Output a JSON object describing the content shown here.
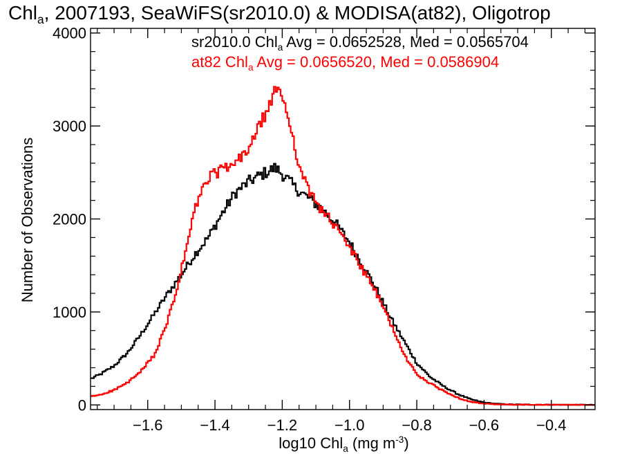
{
  "title": {
    "prefix": "Chl",
    "sub": "a",
    "rest": ", 2007193, SeaWiFS(sr2010.0) & MODISA(at82), Oligotrop"
  },
  "annotations": [
    {
      "pre": "sr2010.0 Chl",
      "sub": "a",
      "post": " Avg = 0.0652528, Med = 0.0565704",
      "color": "#000000"
    },
    {
      "pre": "at82 Chl",
      "sub": "a",
      "post": " Avg = 0.0656520, Med = 0.0586904",
      "color": "#ff0000"
    }
  ],
  "axes": {
    "xlabel": {
      "pre": "log10 Chl",
      "sub": "a",
      "post": " (mg m",
      "sup": "-3",
      "end": ")"
    },
    "ylabel": "Number of Observations"
  },
  "chart_data": {
    "type": "line",
    "style": "step",
    "xlim": [
      -1.77,
      -0.27
    ],
    "ylim": [
      -50,
      4050
    ],
    "xticks": [
      -1.6,
      -1.4,
      -1.2,
      -1.0,
      -0.8,
      -0.6,
      -0.4
    ],
    "xtick_labels": [
      "−1.6",
      "−1.4",
      "−1.2",
      "−1.0",
      "−0.8",
      "−0.6",
      "−0.4"
    ],
    "yticks": [
      0,
      1000,
      2000,
      3000,
      4000
    ],
    "ytick_labels": [
      "0",
      "1000",
      "2000",
      "3000",
      "4000"
    ],
    "grid": false,
    "series": [
      {
        "name": "sr2010.0",
        "color": "#000000",
        "points": [
          [
            -1.77,
            280
          ],
          [
            -1.74,
            330
          ],
          [
            -1.7,
            420
          ],
          [
            -1.66,
            560
          ],
          [
            -1.62,
            760
          ],
          [
            -1.58,
            980
          ],
          [
            -1.54,
            1200
          ],
          [
            -1.5,
            1400
          ],
          [
            -1.46,
            1620
          ],
          [
            -1.42,
            1800
          ],
          [
            -1.38,
            2050
          ],
          [
            -1.34,
            2280
          ],
          [
            -1.3,
            2400
          ],
          [
            -1.26,
            2480
          ],
          [
            -1.22,
            2550
          ],
          [
            -1.19,
            2450
          ],
          [
            -1.16,
            2330
          ],
          [
            -1.12,
            2220
          ],
          [
            -1.08,
            2100
          ],
          [
            -1.04,
            1950
          ],
          [
            -1.0,
            1750
          ],
          [
            -0.96,
            1500
          ],
          [
            -0.92,
            1250
          ],
          [
            -0.88,
            950
          ],
          [
            -0.84,
            700
          ],
          [
            -0.8,
            450
          ],
          [
            -0.76,
            300
          ],
          [
            -0.72,
            200
          ],
          [
            -0.68,
            120
          ],
          [
            -0.64,
            60
          ],
          [
            -0.6,
            25
          ],
          [
            -0.56,
            10
          ],
          [
            -0.52,
            5
          ],
          [
            -0.45,
            2
          ],
          [
            -0.35,
            1
          ],
          [
            -0.27,
            0
          ]
        ]
      },
      {
        "name": "at82",
        "color": "#ff0000",
        "points": [
          [
            -1.77,
            90
          ],
          [
            -1.74,
            110
          ],
          [
            -1.7,
            160
          ],
          [
            -1.66,
            240
          ],
          [
            -1.62,
            360
          ],
          [
            -1.58,
            540
          ],
          [
            -1.55,
            800
          ],
          [
            -1.52,
            1150
          ],
          [
            -1.49,
            1600
          ],
          [
            -1.46,
            2100
          ],
          [
            -1.43,
            2380
          ],
          [
            -1.4,
            2500
          ],
          [
            -1.36,
            2550
          ],
          [
            -1.33,
            2620
          ],
          [
            -1.3,
            2760
          ],
          [
            -1.27,
            2980
          ],
          [
            -1.24,
            3200
          ],
          [
            -1.22,
            3380
          ],
          [
            -1.2,
            3350
          ],
          [
            -1.18,
            3050
          ],
          [
            -1.16,
            2750
          ],
          [
            -1.14,
            2450
          ],
          [
            -1.12,
            2300
          ],
          [
            -1.1,
            2180
          ],
          [
            -1.07,
            2050
          ],
          [
            -1.04,
            1900
          ],
          [
            -1.0,
            1700
          ],
          [
            -0.96,
            1450
          ],
          [
            -0.92,
            1200
          ],
          [
            -0.88,
            900
          ],
          [
            -0.84,
            550
          ],
          [
            -0.8,
            330
          ],
          [
            -0.76,
            230
          ],
          [
            -0.72,
            150
          ],
          [
            -0.68,
            80
          ],
          [
            -0.64,
            35
          ],
          [
            -0.6,
            12
          ],
          [
            -0.56,
            5
          ],
          [
            -0.5,
            2
          ],
          [
            -0.4,
            1
          ],
          [
            -0.27,
            0
          ]
        ]
      }
    ]
  }
}
